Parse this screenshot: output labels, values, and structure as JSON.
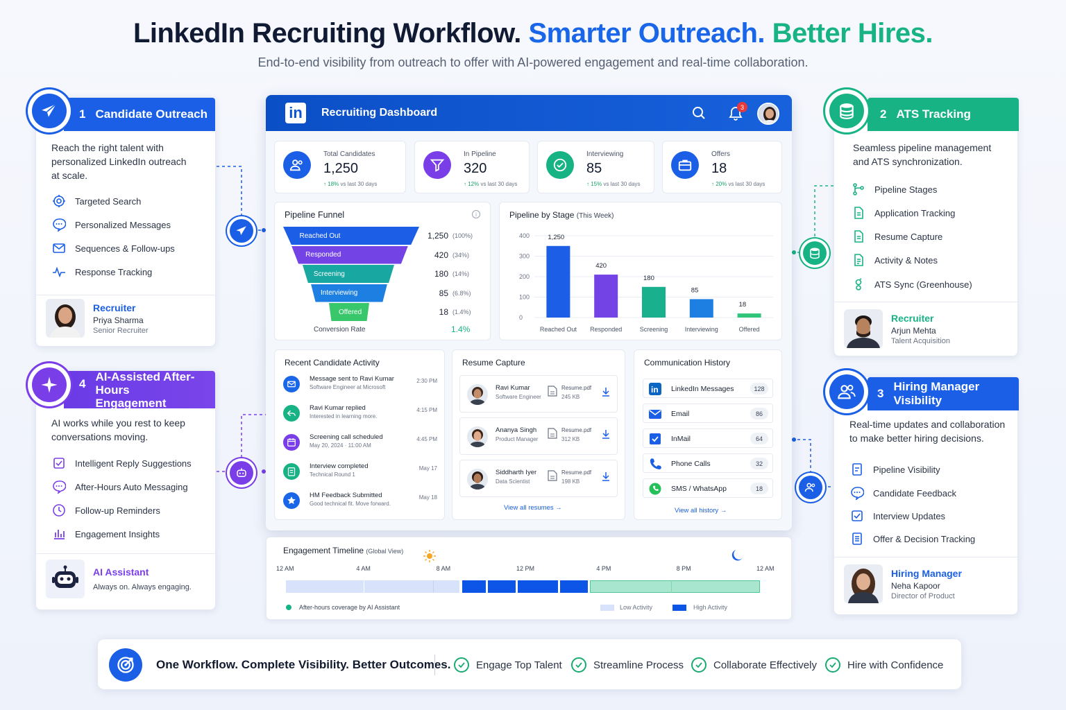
{
  "header": {
    "title_part1": "LinkedIn Recruiting Workflow.",
    "title_part2": "Smarter Outreach.",
    "title_part3": "Better Hires.",
    "subtitle": "End-to-end visibility from outreach to offer with AI-powered engagement and real-time collaboration."
  },
  "colors": {
    "blue": "#1a66e8",
    "green": "#17b384",
    "purple": "#7a3ee8"
  },
  "outreach": {
    "num": "1",
    "title": "Candidate Outreach",
    "desc": "Reach the right talent with personalized LinkedIn outreach at scale.",
    "features": [
      "Targeted Search",
      "Personalized Messages",
      "Sequences & Follow-ups",
      "Response Tracking"
    ],
    "person": {
      "role": "Recruiter",
      "name": "Priya Sharma",
      "title": "Senior Recruiter"
    }
  },
  "ai": {
    "num": "4",
    "title_line1": "AI-Assisted After-Hours",
    "title_line2": "Engagement",
    "desc": "AI works while you rest to keep conversations moving.",
    "features": [
      "Intelligent Reply Suggestions",
      "After-Hours Auto Messaging",
      "Follow-up Reminders",
      "Engagement Insights"
    ],
    "person": {
      "role": "AI Assistant",
      "title": "Always on. Always engaging."
    }
  },
  "ats": {
    "num": "2",
    "title": "ATS Tracking",
    "desc": "Seamless pipeline management and ATS synchronization.",
    "features": [
      "Pipeline Stages",
      "Application Tracking",
      "Resume Capture",
      "Activity & Notes",
      "ATS Sync (Greenhouse)"
    ],
    "person": {
      "role": "Recruiter",
      "name": "Arjun Mehta",
      "title": "Talent Acquisition"
    }
  },
  "hiring": {
    "num": "3",
    "title": "Hiring Manager Visibility",
    "desc": "Real-time updates and collaboration to make better hiring decisions.",
    "features": [
      "Pipeline Visibility",
      "Candidate Feedback",
      "Interview Updates",
      "Offer & Decision Tracking"
    ],
    "person": {
      "role": "Hiring Manager",
      "name": "Neha Kapoor",
      "title": "Director of Product"
    }
  },
  "dashboard": {
    "logo": "in",
    "title": "Recruiting Dashboard",
    "notifications": "3",
    "kpis": [
      {
        "label": "Total Candidates",
        "value": "1,250",
        "delta": "18%",
        "delta_suffix": "vs last 30 days",
        "color": "#1a66e8"
      },
      {
        "label": "In Pipeline",
        "value": "320",
        "delta": "12%",
        "delta_suffix": "vs last 30 days",
        "color": "#7a3ee8"
      },
      {
        "label": "Interviewing",
        "value": "85",
        "delta": "15%",
        "delta_suffix": "vs last 30 days",
        "color": "#17b384"
      },
      {
        "label": "Offers",
        "value": "18",
        "delta": "20%",
        "delta_suffix": "vs last 30 days",
        "color": "#1a66e8"
      }
    ],
    "funnel": {
      "title": "Pipeline Funnel",
      "stages": [
        {
          "label": "Reached Out",
          "value": "1,250",
          "pct": "(100%)",
          "color": "#1c5fe6"
        },
        {
          "label": "Responded",
          "value": "420",
          "pct": "(34%)",
          "color": "#7443e6"
        },
        {
          "label": "Screening",
          "value": "180",
          "pct": "(14%)",
          "color": "#19a7a1"
        },
        {
          "label": "Interviewing",
          "value": "85",
          "pct": "(6.8%)",
          "color": "#1d7fe2"
        },
        {
          "label": "Offered",
          "value": "18",
          "pct": "(1.4%)",
          "color": "#38c76a"
        }
      ],
      "conversion_label": "Conversion Rate",
      "conversion_value": "1.4%"
    },
    "activity": {
      "title": "Recent Candidate Activity",
      "items": [
        {
          "title": "Message sent to Ravi Kumar",
          "sub": "Software Engineer at Microsoft",
          "time": "2:30 PM",
          "color": "#1a66e8",
          "icon": "mail-icon"
        },
        {
          "title": "Ravi Kumar replied",
          "sub": "Interested in learning more.",
          "time": "4:15 PM",
          "color": "#17b384",
          "icon": "reply-icon"
        },
        {
          "title": "Screening call scheduled",
          "sub": "May 20, 2024  ·  11:00 AM",
          "time": "4:45 PM",
          "color": "#7a3ee8",
          "icon": "calendar-icon"
        },
        {
          "title": "Interview completed",
          "sub": "Technical Round 1",
          "time": "May 17",
          "color": "#17b384",
          "icon": "clipboard-icon"
        },
        {
          "title": "HM Feedback Submitted",
          "sub": "Good technical fit. Move forward.",
          "time": "May 18",
          "color": "#1a66e8",
          "icon": "star-icon"
        }
      ]
    },
    "resumes": {
      "title": "Resume Capture",
      "items": [
        {
          "name": "Ravi Kumar",
          "role": "Software Engineer",
          "file": "Resume.pdf",
          "size": "245 KB"
        },
        {
          "name": "Ananya Singh",
          "role": "Product Manager",
          "file": "Resume.pdf",
          "size": "312 KB"
        },
        {
          "name": "Siddharth Iyer",
          "role": "Data Scientist",
          "file": "Resume.pdf",
          "size": "198 KB"
        }
      ],
      "link": "View all resumes"
    },
    "comms": {
      "title": "Communication History",
      "items": [
        {
          "label": "LinkedIn Messages",
          "count": "128",
          "icon": "linkedin-icon"
        },
        {
          "label": "Email",
          "count": "86",
          "icon": "email-icon"
        },
        {
          "label": "InMail",
          "count": "64",
          "icon": "inmail-icon"
        },
        {
          "label": "Phone Calls",
          "count": "32",
          "icon": "phone-icon"
        },
        {
          "label": "SMS / WhatsApp",
          "count": "18",
          "icon": "whatsapp-icon"
        }
      ],
      "link": "View all history"
    }
  },
  "chart_data": {
    "type": "bar",
    "title": "Pipeline by Stage",
    "title_suffix": "(This Week)",
    "categories": [
      "Reached Out",
      "Responded",
      "Screening",
      "Interviewing",
      "Offered"
    ],
    "values": [
      1250,
      420,
      180,
      85,
      18
    ],
    "value_labels": [
      "1,250",
      "420",
      "180",
      "85",
      "18"
    ],
    "display_values": [
      350,
      210,
      150,
      90,
      20
    ],
    "colors": [
      "#1c5fe6",
      "#7443e6",
      "#19b08e",
      "#1d7fe2",
      "#2fc57a"
    ],
    "yticks": [
      "400",
      "300",
      "200",
      "100",
      "0"
    ],
    "ylim": [
      0,
      400
    ],
    "grid": true
  },
  "timeline": {
    "title": "Engagement Timeline",
    "title_suffix": "(Global View)",
    "ticks": [
      "12 AM",
      "4 AM",
      "8 AM",
      "12 PM",
      "4 PM",
      "8 PM",
      "12 AM"
    ],
    "legend_coverage": "After-hours coverage by AI Assistant",
    "legend_low": "Low Activity",
    "legend_high": "High Activity"
  },
  "footer": {
    "tagline": "One Workflow. Complete Visibility. Better Outcomes.",
    "items": [
      "Engage Top Talent",
      "Streamline Process",
      "Collaborate Effectively",
      "Hire with Confidence"
    ]
  }
}
